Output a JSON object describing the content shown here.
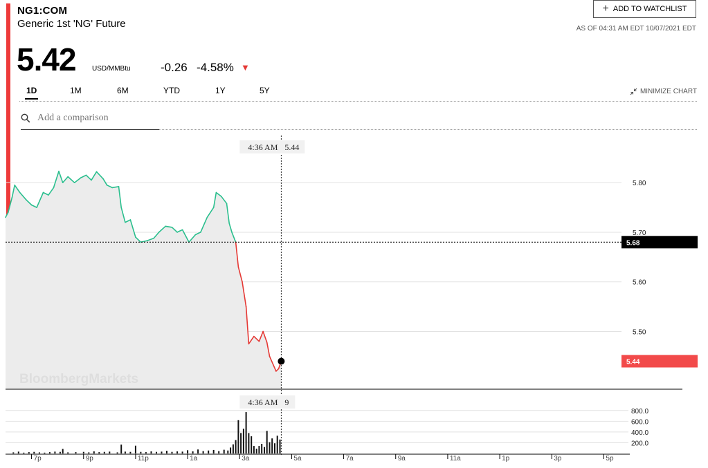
{
  "header": {
    "ticker": "NG1:COM",
    "name": "Generic 1st 'NG' Future",
    "price": "5.42",
    "unit": "USD/MMBtu",
    "change": "-0.26",
    "change_pct": "-4.58%",
    "watchlist_label": "ADD TO WATCHLIST",
    "as_of": "AS OF 04:31 AM EDT 10/07/2021 EDT",
    "minimize_label": "MINIMIZE CHART",
    "comparison_placeholder": "Add a comparison",
    "watermark": "BloombergMarkets"
  },
  "ranges": [
    {
      "label": "1D",
      "active": true
    },
    {
      "label": "1M",
      "active": false
    },
    {
      "label": "6M",
      "active": false
    },
    {
      "label": "YTD",
      "active": false
    },
    {
      "label": "1Y",
      "active": false
    },
    {
      "label": "5Y",
      "active": false
    }
  ],
  "colors": {
    "up": "#2bbf8e",
    "down": "#e53935",
    "rail": "#ee3a3a",
    "badge_prev": "#000000",
    "badge_last": "#f24a4a"
  },
  "chart_data": {
    "type": "line",
    "price_yticks": [
      5.8,
      5.7,
      5.6,
      5.5
    ],
    "price_ylim": [
      5.385,
      5.895
    ],
    "previous_close": 5.68,
    "previous_close_label": "5.68",
    "last_label": "5.44",
    "hover": {
      "time": "4:36 AM",
      "price": "5.44",
      "volume": "9",
      "x_hour": 4.6
    },
    "x_hour_range": [
      18,
      42
    ],
    "x_ticks": [
      "7p",
      "9p",
      "11p",
      "1a",
      "3a",
      "5a",
      "7a",
      "9a",
      "11a",
      "1p",
      "3p",
      "5p"
    ],
    "x_tick_hours": [
      19,
      21,
      23,
      25,
      27,
      29,
      31,
      33,
      35,
      37,
      39,
      41
    ],
    "price_points": [
      [
        18.0,
        5.73
      ],
      [
        18.1,
        5.74
      ],
      [
        18.25,
        5.77
      ],
      [
        18.35,
        5.795
      ],
      [
        18.55,
        5.78
      ],
      [
        18.8,
        5.765
      ],
      [
        19.0,
        5.755
      ],
      [
        19.2,
        5.75
      ],
      [
        19.45,
        5.78
      ],
      [
        19.65,
        5.775
      ],
      [
        19.85,
        5.79
      ],
      [
        20.05,
        5.823
      ],
      [
        20.2,
        5.8
      ],
      [
        20.4,
        5.812
      ],
      [
        20.65,
        5.8
      ],
      [
        20.9,
        5.81
      ],
      [
        21.1,
        5.815
      ],
      [
        21.3,
        5.805
      ],
      [
        21.5,
        5.822
      ],
      [
        21.75,
        5.808
      ],
      [
        21.9,
        5.795
      ],
      [
        22.1,
        5.79
      ],
      [
        22.35,
        5.792
      ],
      [
        22.45,
        5.75
      ],
      [
        22.6,
        5.72
      ],
      [
        22.8,
        5.725
      ],
      [
        23.0,
        5.69
      ],
      [
        23.2,
        5.68
      ],
      [
        23.45,
        5.683
      ],
      [
        23.7,
        5.688
      ],
      [
        23.9,
        5.7
      ],
      [
        24.15,
        5.712
      ],
      [
        24.4,
        5.71
      ],
      [
        24.6,
        5.7
      ],
      [
        24.8,
        5.705
      ],
      [
        25.05,
        5.68
      ],
      [
        25.3,
        5.695
      ],
      [
        25.5,
        5.7
      ],
      [
        25.75,
        5.73
      ],
      [
        26.0,
        5.75
      ],
      [
        26.1,
        5.78
      ],
      [
        26.3,
        5.772
      ],
      [
        26.5,
        5.758
      ],
      [
        26.6,
        5.718
      ],
      [
        26.7,
        5.7
      ],
      [
        26.85,
        5.68
      ],
      [
        26.95,
        5.63
      ],
      [
        27.1,
        5.6
      ],
      [
        27.25,
        5.55
      ],
      [
        27.35,
        5.475
      ],
      [
        27.55,
        5.49
      ],
      [
        27.75,
        5.48
      ],
      [
        27.9,
        5.5
      ],
      [
        28.05,
        5.478
      ],
      [
        28.15,
        5.45
      ],
      [
        28.4,
        5.42
      ],
      [
        28.5,
        5.425
      ],
      [
        28.6,
        5.44
      ]
    ],
    "volume_yticks": [
      800,
      600,
      400,
      200
    ],
    "volume_ylim": [
      0,
      900
    ],
    "volume_bars": [
      [
        18.3,
        20
      ],
      [
        18.5,
        35
      ],
      [
        18.7,
        15
      ],
      [
        18.9,
        25
      ],
      [
        19.1,
        30
      ],
      [
        19.3,
        20
      ],
      [
        19.5,
        15
      ],
      [
        19.7,
        25
      ],
      [
        19.9,
        35
      ],
      [
        20.1,
        30
      ],
      [
        20.2,
        85
      ],
      [
        20.4,
        20
      ],
      [
        20.7,
        25
      ],
      [
        21.0,
        30
      ],
      [
        21.2,
        20
      ],
      [
        21.4,
        40
      ],
      [
        21.6,
        25
      ],
      [
        21.8,
        30
      ],
      [
        22.0,
        35
      ],
      [
        22.3,
        20
      ],
      [
        22.45,
        165
      ],
      [
        22.6,
        35
      ],
      [
        22.8,
        30
      ],
      [
        23.0,
        145
      ],
      [
        23.2,
        30
      ],
      [
        23.4,
        25
      ],
      [
        23.6,
        40
      ],
      [
        23.8,
        30
      ],
      [
        24.0,
        35
      ],
      [
        24.2,
        50
      ],
      [
        24.4,
        30
      ],
      [
        24.6,
        40
      ],
      [
        24.8,
        35
      ],
      [
        25.0,
        60
      ],
      [
        25.2,
        40
      ],
      [
        25.4,
        75
      ],
      [
        25.6,
        45
      ],
      [
        25.8,
        55
      ],
      [
        26.0,
        65
      ],
      [
        26.2,
        45
      ],
      [
        26.4,
        70
      ],
      [
        26.55,
        55
      ],
      [
        26.65,
        110
      ],
      [
        26.75,
        170
      ],
      [
        26.85,
        250
      ],
      [
        26.95,
        620
      ],
      [
        27.05,
        380
      ],
      [
        27.15,
        460
      ],
      [
        27.25,
        770
      ],
      [
        27.35,
        380
      ],
      [
        27.45,
        320
      ],
      [
        27.55,
        140
      ],
      [
        27.65,
        90
      ],
      [
        27.75,
        140
      ],
      [
        27.85,
        180
      ],
      [
        27.95,
        120
      ],
      [
        28.05,
        420
      ],
      [
        28.15,
        210
      ],
      [
        28.25,
        280
      ],
      [
        28.35,
        190
      ],
      [
        28.45,
        330
      ],
      [
        28.55,
        260
      ]
    ]
  }
}
